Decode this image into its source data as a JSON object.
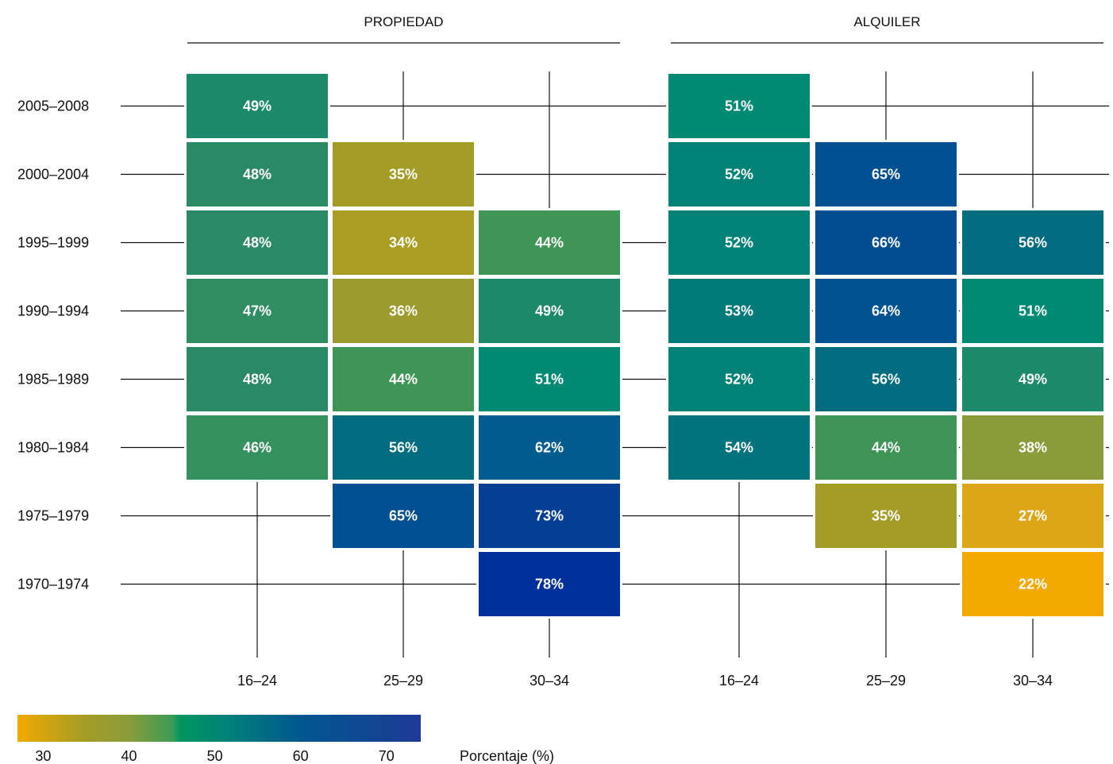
{
  "chart_data": {
    "type": "heatmap",
    "rows": [
      "2005–2008",
      "2000–2004",
      "1995–1999",
      "1990–1994",
      "1985–1989",
      "1980–1984",
      "1975–1979",
      "1970–1974"
    ],
    "columns": [
      "16–24",
      "25–29",
      "30–34"
    ],
    "panels": [
      {
        "title": "PROPIEDAD",
        "values": [
          [
            49,
            null,
            null
          ],
          [
            48,
            35,
            null
          ],
          [
            48,
            34,
            44
          ],
          [
            47,
            36,
            49
          ],
          [
            48,
            44,
            51
          ],
          [
            46,
            56,
            62
          ],
          [
            null,
            65,
            73
          ],
          [
            null,
            null,
            78
          ]
        ]
      },
      {
        "title": "ALQUILER",
        "values": [
          [
            51,
            null,
            null
          ],
          [
            52,
            65,
            null
          ],
          [
            52,
            66,
            56
          ],
          [
            53,
            64,
            51
          ],
          [
            52,
            56,
            49
          ],
          [
            54,
            44,
            38
          ],
          [
            null,
            35,
            27
          ],
          [
            null,
            null,
            22
          ]
        ]
      }
    ],
    "value_suffix": "%",
    "colorbar": {
      "title": "Porcentaje (%)",
      "ticks": [
        30,
        40,
        50,
        60,
        70
      ],
      "range": [
        27,
        74
      ],
      "stops": [
        {
          "value": 27,
          "color": "#f2a900"
        },
        {
          "value": 35,
          "color": "#a39c26"
        },
        {
          "value": 40,
          "color": "#8a9c3a"
        },
        {
          "value": 45,
          "color": "#3c9c55"
        },
        {
          "value": 46,
          "color": "#00965f"
        },
        {
          "value": 52,
          "color": "#007f7a"
        },
        {
          "value": 60,
          "color": "#00578f"
        },
        {
          "value": 74,
          "color": "#1e3a96"
        }
      ]
    },
    "cell_stops": [
      {
        "value": 22,
        "color": "#f2a900"
      },
      {
        "value": 27,
        "color": "#dca617"
      },
      {
        "value": 35,
        "color": "#a39c26"
      },
      {
        "value": 38,
        "color": "#8a9c3a"
      },
      {
        "value": 44,
        "color": "#3e9555"
      },
      {
        "value": 48,
        "color": "#2a8a65"
      },
      {
        "value": 51,
        "color": "#008a74"
      },
      {
        "value": 54,
        "color": "#00737c"
      },
      {
        "value": 56,
        "color": "#006c80"
      },
      {
        "value": 62,
        "color": "#005b8e"
      },
      {
        "value": 65,
        "color": "#004f91"
      },
      {
        "value": 73,
        "color": "#053f94"
      },
      {
        "value": 78,
        "color": "#00309c"
      }
    ]
  }
}
